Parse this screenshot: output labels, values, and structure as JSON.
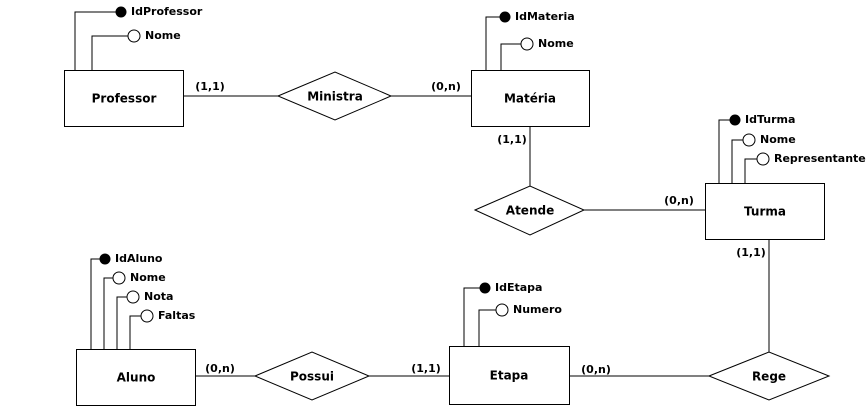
{
  "entities": {
    "professor": {
      "name": "Professor",
      "attributes": [
        "IdProfessor",
        "Nome"
      ]
    },
    "materia": {
      "name": "Matéria",
      "attributes": [
        "IdMateria",
        "Nome"
      ]
    },
    "turma": {
      "name": "Turma",
      "attributes": [
        "IdTurma",
        "Nome",
        "Representante"
      ]
    },
    "aluno": {
      "name": "Aluno",
      "attributes": [
        "IdAluno",
        "Nome",
        "Nota",
        "Faltas"
      ]
    },
    "etapa": {
      "name": "Etapa",
      "attributes": [
        "IdEtapa",
        "Numero"
      ]
    }
  },
  "relationships": {
    "ministra": "Ministra",
    "atende": "Atende",
    "possui": "Possui",
    "rege": "Rege"
  },
  "cardinalities": {
    "professor_ministra": "(1,1)",
    "ministra_materia": "(0,n)",
    "materia_atende": "(1,1)",
    "atende_turma": "(0,n)",
    "turma_rege": "(1,1)",
    "rege_etapa": "(0,n)",
    "etapa_possui": "(1,1)",
    "possui_aluno": "(0,n)"
  }
}
